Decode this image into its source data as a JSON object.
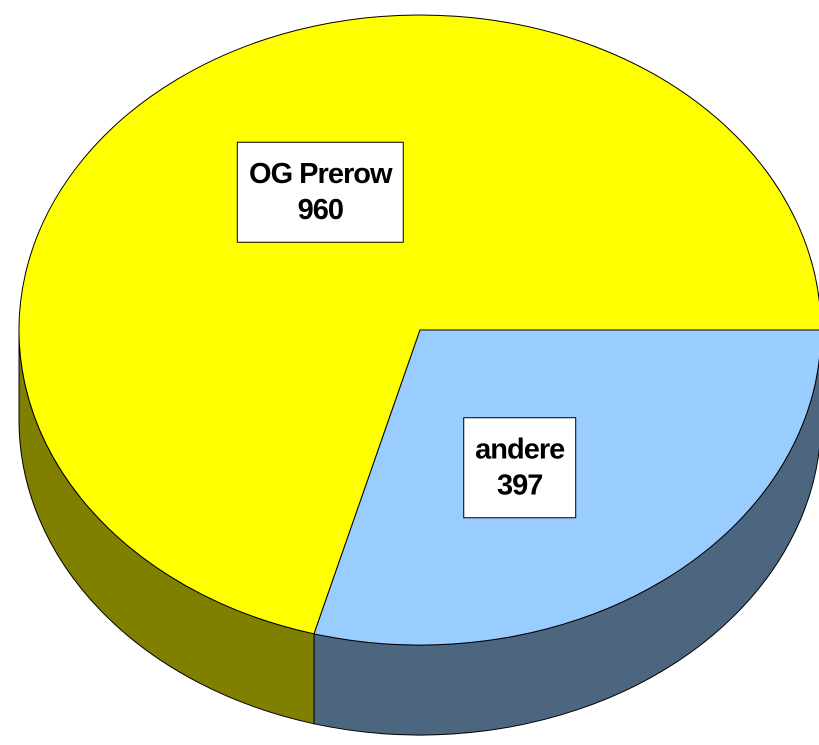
{
  "chart_data": {
    "type": "pie",
    "categories": [
      "OG Prerow",
      "andere"
    ],
    "values": [
      960,
      397
    ],
    "colors": [
      "#ffff00",
      "#99ccff"
    ]
  }
}
